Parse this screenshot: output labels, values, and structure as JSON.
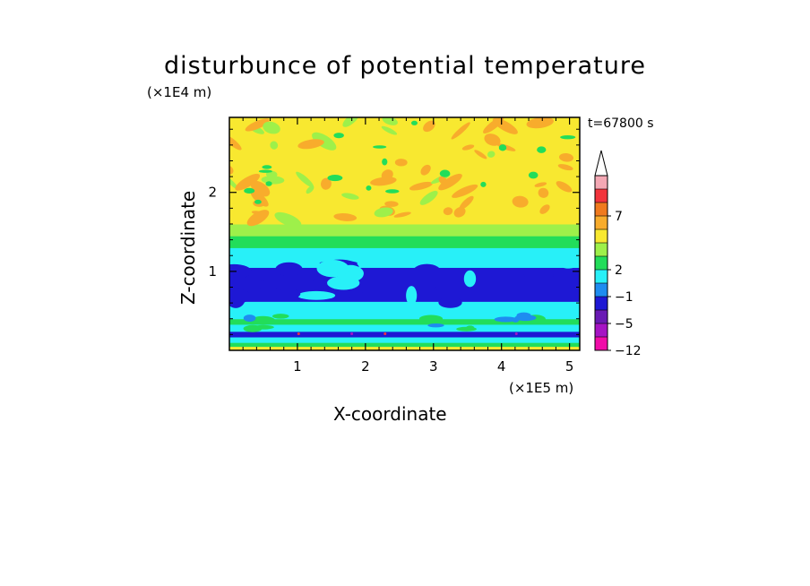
{
  "chart_data": {
    "type": "heatmap",
    "title": "disturbunce of potential temperature",
    "xlabel": "X-coordinate",
    "ylabel": "Z-coordinate",
    "x_unit": "(×1E5 m)",
    "y_unit": "(×1E4 m)",
    "annotation": "t=67800 s",
    "xlim": [
      0,
      5.15
    ],
    "ylim": [
      0,
      2.95
    ],
    "x_ticks": [
      "1",
      "2",
      "3",
      "4",
      "5"
    ],
    "y_ticks": [
      "1",
      "2"
    ],
    "colorbar": {
      "labels": [
        "7",
        "2",
        "−1",
        "−5",
        "−12"
      ],
      "colors": [
        "#f4a8b4",
        "#f2343c",
        "#f07a1e",
        "#f8ac2c",
        "#f8e830",
        "#9ef04a",
        "#22dd5a",
        "#28f0f8",
        "#1e8cf0",
        "#1e18d4",
        "#6a1ab4",
        "#a614c4",
        "#f00ca8"
      ],
      "extend_top": true
    },
    "bands": [
      {
        "z_bottom": 0.0,
        "z_top": 0.05,
        "color": "#f8e830"
      },
      {
        "z_bottom": 0.05,
        "z_top": 0.1,
        "color": "#22dd5a"
      },
      {
        "z_bottom": 0.1,
        "z_top": 0.17,
        "color": "#28f0f8"
      },
      {
        "z_bottom": 0.17,
        "z_top": 0.24,
        "color": "#1e18d4"
      },
      {
        "z_bottom": 0.24,
        "z_top": 0.33,
        "color": "#28f0f8"
      },
      {
        "z_bottom": 0.33,
        "z_top": 0.4,
        "color": "#22dd5a"
      },
      {
        "z_bottom": 0.4,
        "z_top": 0.62,
        "color": "#28f0f8"
      },
      {
        "z_bottom": 0.62,
        "z_top": 1.05,
        "color": "#1e18d4"
      },
      {
        "z_bottom": 1.05,
        "z_top": 1.3,
        "color": "#28f0f8"
      },
      {
        "z_bottom": 1.3,
        "z_top": 1.45,
        "color": "#22dd5a"
      },
      {
        "z_bottom": 1.45,
        "z_top": 1.6,
        "color": "#9ef04a"
      },
      {
        "z_bottom": 1.6,
        "z_top": 2.95,
        "color": "#f8e830"
      }
    ]
  }
}
